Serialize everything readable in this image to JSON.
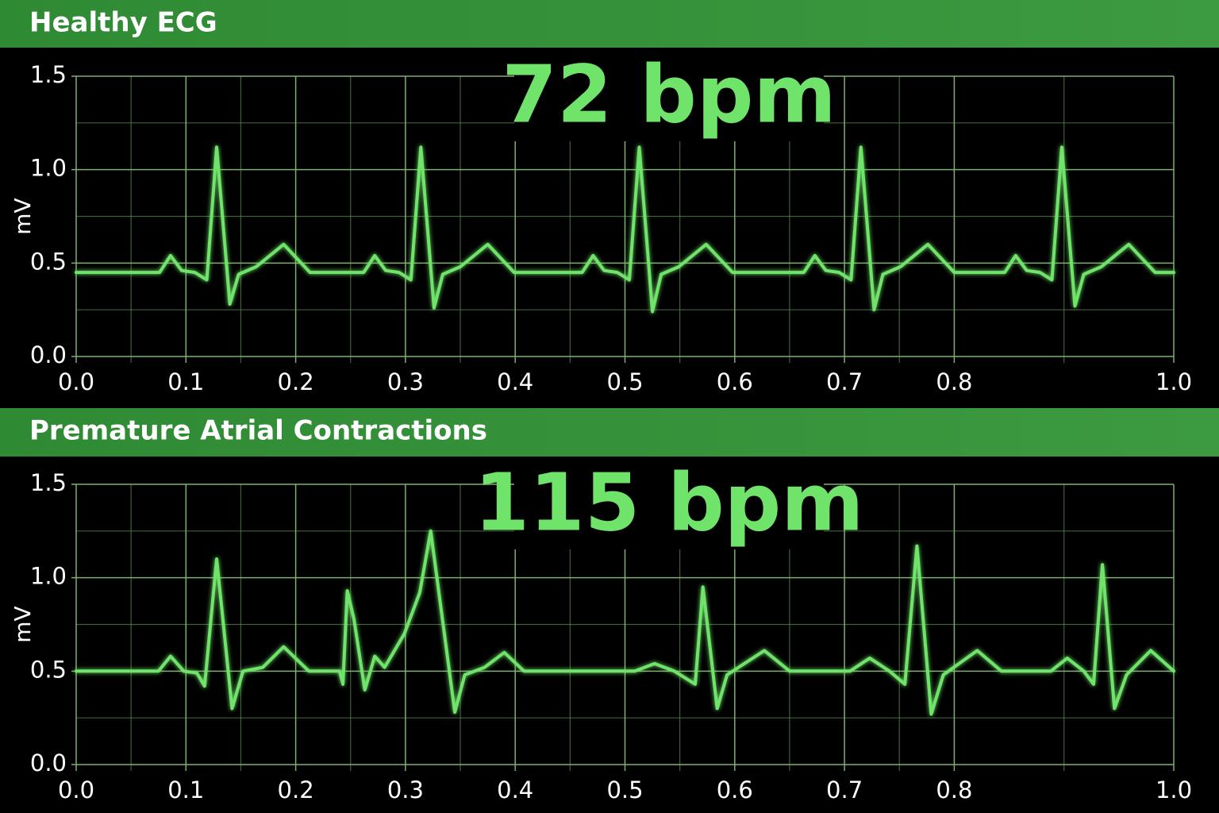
{
  "chart_data": [
    {
      "type": "line",
      "title": "Healthy ECG",
      "annotation": "72 bpm",
      "y_label": "mV",
      "x": [
        0,
        0.076,
        0.086,
        0.096,
        0.108,
        0.119,
        0.128,
        0.14,
        0.148,
        0.164,
        0.189,
        0.213,
        0.262,
        0.272,
        0.282,
        0.294,
        0.305,
        0.314,
        0.326,
        0.334,
        0.35,
        0.375,
        0.399,
        0.461,
        0.471,
        0.481,
        0.493,
        0.504,
        0.513,
        0.525,
        0.533,
        0.549,
        0.574,
        0.598,
        0.663,
        0.673,
        0.683,
        0.695,
        0.706,
        0.715,
        0.727,
        0.735,
        0.751,
        0.776,
        0.8,
        0.846,
        0.856,
        0.866,
        0.878,
        0.889,
        0.898,
        0.91,
        0.918,
        0.934,
        0.959,
        0.983,
        1.0
      ],
      "series": [
        {
          "name": "ECG",
          "color": "#6fe36a",
          "values": [
            0.45,
            0.45,
            0.54,
            0.46,
            0.45,
            0.41,
            1.12,
            0.28,
            0.44,
            0.48,
            0.6,
            0.45,
            0.45,
            0.54,
            0.46,
            0.45,
            0.41,
            1.12,
            0.26,
            0.44,
            0.48,
            0.6,
            0.45,
            0.45,
            0.54,
            0.46,
            0.45,
            0.41,
            1.12,
            0.24,
            0.44,
            0.48,
            0.6,
            0.45,
            0.45,
            0.54,
            0.46,
            0.45,
            0.41,
            1.12,
            0.25,
            0.44,
            0.48,
            0.6,
            0.45,
            0.45,
            0.54,
            0.46,
            0.45,
            0.41,
            1.12,
            0.27,
            0.44,
            0.48,
            0.6,
            0.45,
            0.45
          ]
        }
      ],
      "xlim": [
        0,
        1
      ],
      "ylim": [
        0,
        1.5
      ],
      "xticks": [
        {
          "value": 0,
          "label": "0.0"
        },
        0.1,
        0.2,
        0.3,
        0.4,
        0.5,
        0.6,
        0.7,
        0.8,
        {
          "value": 1,
          "label": "1.0"
        }
      ],
      "yticks": [
        {
          "value": 0,
          "label": "0.0"
        },
        0.5,
        {
          "value": 1,
          "label": "1.0"
        },
        1.5
      ],
      "grid": true
    },
    {
      "type": "line",
      "title": "Premature Atrial Contractions",
      "annotation": "115 bpm",
      "y_label": "mV",
      "x": [
        0,
        0.075,
        0.086,
        0.098,
        0.11,
        0.117,
        0.128,
        0.142,
        0.152,
        0.17,
        0.189,
        0.212,
        0.24,
        0.243,
        0.247,
        0.253,
        0.263,
        0.272,
        0.281,
        0.299,
        0.313,
        0.323,
        0.345,
        0.354,
        0.372,
        0.39,
        0.408,
        0.509,
        0.527,
        0.545,
        0.564,
        0.571,
        0.584,
        0.593,
        0.627,
        0.65,
        0.705,
        0.723,
        0.741,
        0.755,
        0.766,
        0.779,
        0.79,
        0.821,
        0.843,
        0.888,
        0.903,
        0.918,
        0.927,
        0.935,
        0.946,
        0.957,
        0.979,
        1.0
      ],
      "series": [
        {
          "name": "ECG",
          "color": "#6fe36a",
          "values": [
            0.5,
            0.5,
            0.58,
            0.5,
            0.49,
            0.42,
            1.1,
            0.3,
            0.5,
            0.52,
            0.63,
            0.5,
            0.5,
            0.43,
            0.93,
            0.78,
            0.4,
            0.58,
            0.52,
            0.7,
            0.92,
            1.25,
            0.28,
            0.48,
            0.52,
            0.6,
            0.5,
            0.5,
            0.54,
            0.5,
            0.43,
            0.95,
            0.3,
            0.48,
            0.61,
            0.5,
            0.5,
            0.57,
            0.5,
            0.43,
            1.17,
            0.27,
            0.48,
            0.61,
            0.5,
            0.5,
            0.57,
            0.5,
            0.43,
            1.07,
            0.3,
            0.48,
            0.61,
            0.5
          ]
        }
      ],
      "xlim": [
        0,
        1
      ],
      "ylim": [
        0,
        1.5
      ],
      "xticks": [
        {
          "value": 0,
          "label": "0.0"
        },
        0.1,
        0.2,
        0.3,
        0.4,
        0.5,
        0.6,
        0.7,
        0.8,
        {
          "value": 1,
          "label": "1.0"
        }
      ],
      "yticks": [
        {
          "value": 0,
          "label": "0.0"
        },
        0.5,
        {
          "value": 1,
          "label": "1.0"
        },
        1.5
      ],
      "grid": true
    }
  ]
}
